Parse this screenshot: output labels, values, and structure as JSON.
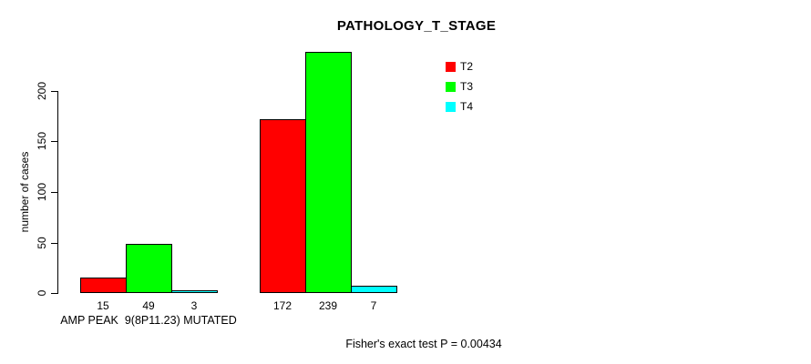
{
  "title": "PATHOLOGY_T_STAGE",
  "footer": {
    "text": "Fisher's exact test P = 0.00434"
  },
  "chart_data": {
    "type": "bar",
    "title": "PATHOLOGY_T_STAGE",
    "xlabel": "",
    "ylabel": "number of cases",
    "categories": [
      "AMP PEAK  9(8P11.23) MUTATED",
      ""
    ],
    "series": [
      {
        "name": "T2",
        "color": "#ff0000",
        "values": [
          15,
          172
        ]
      },
      {
        "name": "T3",
        "color": "#00ff00",
        "values": [
          49,
          239
        ]
      },
      {
        "name": "T4",
        "color": "#00ffff",
        "values": [
          3,
          7
        ]
      }
    ],
    "yticks": [
      0,
      50,
      100,
      150,
      200
    ],
    "ylim": [
      0,
      240
    ],
    "bar_value_labels": [
      [
        "15",
        "49",
        "3"
      ],
      [
        "172",
        "239",
        "7"
      ]
    ],
    "legend_position": "top-right",
    "grid": false,
    "annotation": "Fisher's exact test P = 0.00434"
  }
}
